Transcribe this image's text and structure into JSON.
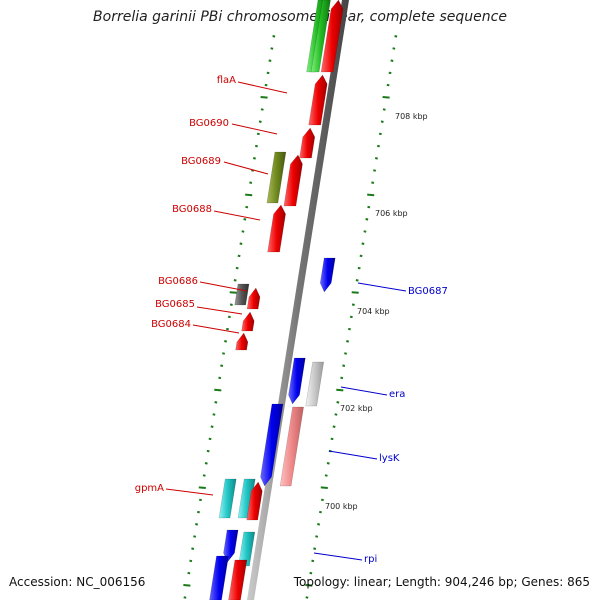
{
  "title": "Borrelia garinii PBi chromosome linear, complete sequence",
  "footer": {
    "accession": "Accession: NC_006156",
    "summary": "Topology: linear; Length: 904,246 bp; Genes: 865"
  },
  "colors": {
    "forward_label": "#cc0000",
    "reverse_label": "#0000cc",
    "tick": "#1a7a1a",
    "backbone": "#888888"
  },
  "scale_labels": [
    {
      "text": "708 kbp"
    },
    {
      "text": "706 kbp"
    },
    {
      "text": "704 kbp"
    },
    {
      "text": "702 kbp"
    },
    {
      "text": "700 kbp"
    }
  ],
  "gene_labels": [
    {
      "text": "flaA",
      "strand": "forward"
    },
    {
      "text": "BG0690",
      "strand": "forward"
    },
    {
      "text": "BG0689",
      "strand": "forward"
    },
    {
      "text": "BG0688",
      "strand": "forward"
    },
    {
      "text": "BG0686",
      "strand": "forward"
    },
    {
      "text": "BG0685",
      "strand": "forward"
    },
    {
      "text": "BG0684",
      "strand": "forward"
    },
    {
      "text": "gpmA",
      "strand": "forward"
    },
    {
      "text": "BG0687",
      "strand": "reverse"
    },
    {
      "text": "era",
      "strand": "reverse"
    },
    {
      "text": "lysK",
      "strand": "reverse"
    },
    {
      "text": "rpi",
      "strand": "reverse"
    }
  ],
  "feature_colors": [
    "red",
    "green",
    "olive",
    "gray",
    "blue",
    "lightgray",
    "pink",
    "cyan"
  ]
}
